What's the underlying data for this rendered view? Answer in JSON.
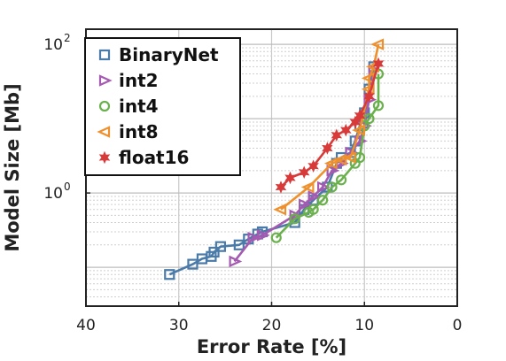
{
  "chart_data": {
    "type": "line",
    "title": "",
    "xlabel": "Error Rate [%]",
    "ylabel": "Model Size [Mb]",
    "xlim": [
      40,
      0
    ],
    "x_reversed": true,
    "x_ticks": [
      40,
      30,
      20,
      10,
      0
    ],
    "x_tick_labels": [
      "40",
      "30",
      "20",
      "10",
      "0"
    ],
    "ylim": [
      0.03,
      160
    ],
    "y_scale": "log",
    "y_tick_labels": [
      {
        "value": 1,
        "base": "10",
        "exp": "0"
      },
      {
        "value": 100,
        "base": "10",
        "exp": "2"
      }
    ],
    "grid": true,
    "legend_position": "top-left",
    "series": [
      {
        "name": "BinaryNet",
        "color": "#4a7aa8",
        "marker": "square",
        "points": [
          [
            31,
            0.08
          ],
          [
            28.5,
            0.11
          ],
          [
            27.5,
            0.13
          ],
          [
            26.5,
            0.14
          ],
          [
            26.2,
            0.16
          ],
          [
            25.5,
            0.19
          ],
          [
            23.5,
            0.2
          ],
          [
            22.5,
            0.24
          ],
          [
            21.5,
            0.28
          ],
          [
            21,
            0.3
          ],
          [
            17.5,
            0.4
          ],
          [
            16.5,
            0.6
          ],
          [
            15.5,
            0.8
          ],
          [
            14,
            1.2
          ],
          [
            13,
            2.5
          ],
          [
            12.5,
            3.0
          ],
          [
            11.5,
            3.5
          ],
          [
            11,
            5.0
          ],
          [
            10.5,
            8.0
          ],
          [
            10,
            12
          ],
          [
            9.5,
            25
          ],
          [
            9,
            50
          ]
        ]
      },
      {
        "name": "int2",
        "color": "#a45ab0",
        "marker": "triangle-right",
        "points": [
          [
            24,
            0.12
          ],
          [
            22,
            0.25
          ],
          [
            21,
            0.27
          ],
          [
            17.5,
            0.5
          ],
          [
            16.5,
            0.7
          ],
          [
            15.5,
            0.9
          ],
          [
            14.5,
            1.2
          ],
          [
            13.5,
            2.0
          ],
          [
            12.5,
            2.5
          ],
          [
            11.5,
            3.5
          ],
          [
            10.5,
            5.0
          ],
          [
            10,
            8.0
          ],
          [
            9.5,
            18
          ],
          [
            9,
            45
          ]
        ]
      },
      {
        "name": "int4",
        "color": "#6ab04c",
        "marker": "circle",
        "points": [
          [
            19.5,
            0.25
          ],
          [
            17.5,
            0.45
          ],
          [
            16,
            0.55
          ],
          [
            15.5,
            0.6
          ],
          [
            14.5,
            0.8
          ],
          [
            13.5,
            1.2
          ],
          [
            12.5,
            1.5
          ],
          [
            11,
            2.5
          ],
          [
            10.5,
            3.0
          ],
          [
            10,
            8.0
          ],
          [
            9.5,
            10
          ],
          [
            8.5,
            15
          ],
          [
            8.5,
            40
          ]
        ]
      },
      {
        "name": "int8",
        "color": "#f0902c",
        "marker": "triangle-left",
        "points": [
          [
            19,
            0.6
          ],
          [
            16,
            1.2
          ],
          [
            13.5,
            2.5
          ],
          [
            12.5,
            2.8
          ],
          [
            11.5,
            3.0
          ],
          [
            10.5,
            7.0
          ],
          [
            9.5,
            25
          ],
          [
            9.5,
            35
          ],
          [
            9,
            50
          ],
          [
            8.5,
            100
          ]
        ]
      },
      {
        "name": "float16",
        "color": "#d83a3a",
        "marker": "star",
        "points": [
          [
            19,
            1.2
          ],
          [
            18,
            1.6
          ],
          [
            16.5,
            1.9
          ],
          [
            15.5,
            2.3
          ],
          [
            14,
            4.0
          ],
          [
            13,
            6.0
          ],
          [
            12,
            7.0
          ],
          [
            11,
            9.0
          ],
          [
            10.5,
            11
          ],
          [
            9.5,
            20
          ],
          [
            8.5,
            55
          ]
        ]
      }
    ]
  }
}
